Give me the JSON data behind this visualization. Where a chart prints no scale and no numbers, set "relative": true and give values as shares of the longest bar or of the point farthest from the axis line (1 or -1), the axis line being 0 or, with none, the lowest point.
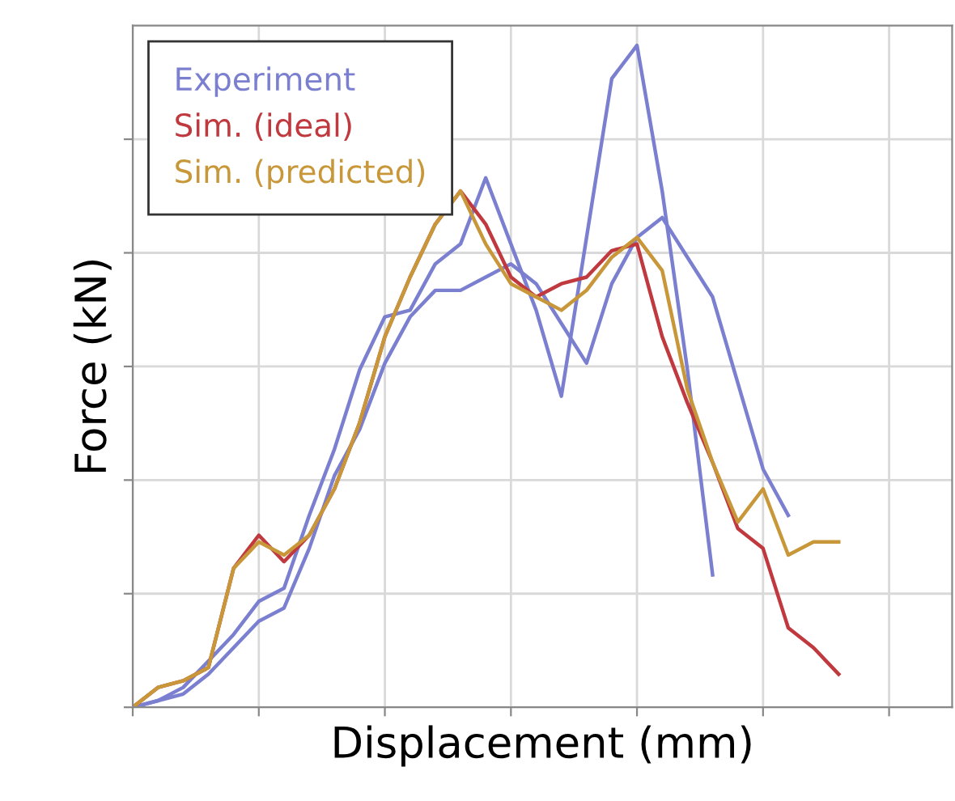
{
  "chart_data": {
    "type": "line",
    "relative": true,
    "xlabel": "Displacement (mm)",
    "ylabel": "Force (kN)",
    "categories": [
      null,
      null,
      null,
      null,
      null,
      null,
      null,
      null,
      null,
      null,
      null,
      null,
      null,
      null,
      null,
      null,
      null,
      null,
      null,
      null,
      null,
      null,
      null,
      null,
      null,
      null,
      null,
      null,
      null,
      null,
      null,
      null,
      null
    ],
    "series": [
      {
        "name": "Experiment",
        "color": "#7b7fd0",
        "values": [
          0,
          0.01,
          0.03,
          0.07,
          0.11,
          0.16,
          0.18,
          0.29,
          0.39,
          0.51,
          0.59,
          0.6,
          0.67,
          0.7,
          0.8,
          0.7,
          0.6,
          0.47,
          0.71,
          0.95,
          1,
          0.78,
          0.51,
          0.2,
          null,
          null,
          null,
          null,
          null,
          null,
          null,
          null,
          null
        ]
      },
      {
        "color": "#7b7fd0",
        "values": [
          0,
          0.01,
          0.02,
          0.05,
          0.09,
          0.13,
          0.15,
          0.24,
          0.35,
          0.42,
          0.52,
          0.59,
          0.63,
          0.63,
          0.65,
          0.67,
          0.64,
          0.58,
          0.52,
          0.64,
          0.71,
          0.74,
          0.68,
          0.62,
          0.49,
          0.36,
          0.29,
          null,
          null,
          null,
          null,
          null,
          null
        ]
      },
      {
        "name": "Sim. (ideal)",
        "color": "#c0393f",
        "values": [
          0,
          0.03,
          0.04,
          0.06,
          0.21,
          0.26,
          0.22,
          0.26,
          0.33,
          0.43,
          0.56,
          0.65,
          0.73,
          0.78,
          0.73,
          0.65,
          0.62,
          0.64,
          0.65,
          0.69,
          0.7,
          0.56,
          0.46,
          0.37,
          0.27,
          0.24,
          0.12,
          0.09,
          0.05,
          null,
          null,
          null,
          null
        ]
      },
      {
        "name": "Sim. (predicted)",
        "color": "#c8973a",
        "values": [
          0,
          0.03,
          0.04,
          0.06,
          0.21,
          0.25,
          0.23,
          0.26,
          0.33,
          0.43,
          0.56,
          0.65,
          0.73,
          0.78,
          0.7,
          0.64,
          0.62,
          0.6,
          0.63,
          0.68,
          0.71,
          0.66,
          0.48,
          0.37,
          0.28,
          0.33,
          0.23,
          0.25,
          0.25,
          null,
          null,
          null,
          null
        ]
      }
    ],
    "grid": true,
    "legend": "top left"
  }
}
